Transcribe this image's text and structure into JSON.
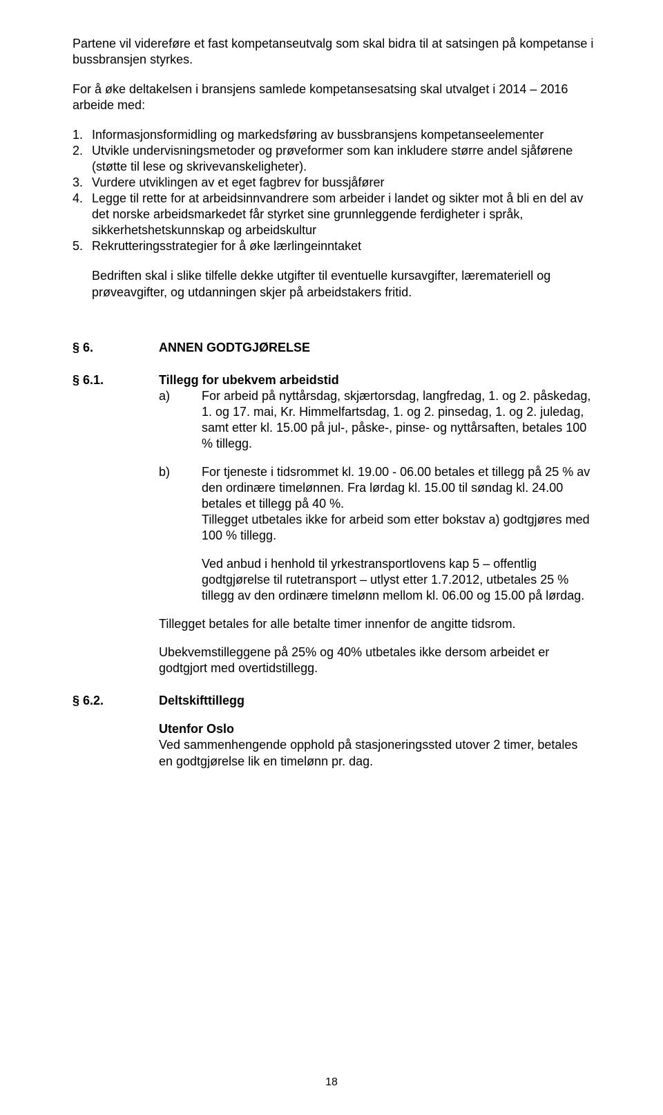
{
  "intro": {
    "p1": "Partene vil videreføre et fast kompetanseutvalg som skal bidra til at satsingen på kompetanse i bussbransjen styrkes.",
    "p2": "For å øke deltakelsen i bransjens samlede kompetansesatsing skal utvalget i 2014 – 2016 arbeide med:"
  },
  "numbered": [
    "Informasjonsformidling og markedsføring av bussbransjens kompetanseelementer",
    "Utvikle undervisningsmetoder og prøveformer som kan inkludere større andel sjåførene (støtte til lese og skrivevanskeligheter).",
    "Vurdere utviklingen av et eget fagbrev for bussjåfører",
    "Legge til rette for at arbeidsinnvandrere som arbeider i landet og sikter mot å bli en del av det norske arbeidsmarkedet får styrket sine grunnleggende ferdigheter i språk, sikkerhetshetskunnskap og arbeidskultur",
    "Rekrutteringsstrategier for å øke lærlingeinntaket"
  ],
  "after_list": "Bedriften skal i slike tilfelle dekke utgifter til eventuelle kursavgifter, læremateriell og prøveavgifter, og utdanningen skjer på arbeidstakers fritid.",
  "s6": {
    "label": "§ 6.",
    "title": "ANNEN GODTGJØRELSE"
  },
  "s6_1": {
    "label": "§ 6.1.",
    "title": "Tillegg for ubekvem arbeidstid",
    "a_label": "a)",
    "a_text": "For arbeid på nyttårsdag, skjærtorsdag, langfredag, 1. og 2. påskedag, 1. og 17. mai, Kr. Himmelfartsdag, 1. og 2. pinsedag, 1. og 2. juledag, samt etter kl. 15.00 på jul-, påske-, pinse- og nyttårsaften, betales 100 % tillegg.",
    "b_label": "b)",
    "b_text_1": "For tjeneste i tidsrommet kl. 19.00 - 06.00 betales et tillegg på 25 % av den ordinære timelønnen.  Fra lørdag kl. 15.00 til søndag kl. 24.00 betales et tillegg på 40 %.",
    "b_text_2": "Tillegget utbetales ikke for arbeid som etter bokstav a) godtgjøres med 100 % tillegg.",
    "b_text_3": "Ved anbud i henhold til yrkestransportlovens kap 5 – offentlig godtgjørelse til rutetransport – utlyst etter 1.7.2012, utbetales 25 % tillegg av den ordinære timelønn mellom kl. 06.00 og 15.00 på lørdag.",
    "tail_1": "Tillegget betales for alle betalte timer innenfor de angitte tidsrom.",
    "tail_2": "Ubekvemstilleggene på 25% og 40% utbetales ikke dersom arbeidet er godtgjort med overtidstillegg."
  },
  "s6_2": {
    "label": "§ 6.2.",
    "title": "Deltskifttillegg",
    "sub_title": "Utenfor Oslo",
    "text": "Ved sammenhengende opphold på stasjoneringssted utover 2 timer, betales en godtgjørelse lik en timelønn pr. dag."
  },
  "page_number": "18"
}
